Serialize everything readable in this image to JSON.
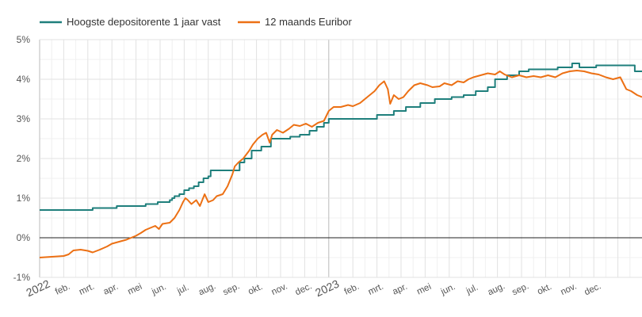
{
  "chart_data": {
    "type": "line",
    "title": "",
    "xlabel": "",
    "ylabel": "",
    "ylim": [
      -1,
      5
    ],
    "y_ticks": [
      "5%",
      "4%",
      "3%",
      "2%",
      "1%",
      "0%",
      "-1%"
    ],
    "x_ticks": [
      "2022",
      "feb.",
      "mrt.",
      "apr.",
      "mei",
      "jun.",
      "jul.",
      "aug.",
      "sep.",
      "okt.",
      "nov.",
      "dec.",
      "2023",
      "feb.",
      "mrt.",
      "apr.",
      "mei",
      "jun.",
      "jul.",
      "aug.",
      "sep.",
      "okt.",
      "nov.",
      "dec."
    ],
    "grid": true,
    "legend_position": "top-left",
    "x_unit": "months since January 2022",
    "series": [
      {
        "name": "Hoogste depositorente 1 jaar vast",
        "color": "#1f7f7c",
        "step": true,
        "points": [
          [
            0.0,
            0.7
          ],
          [
            2.1,
            0.7
          ],
          [
            2.2,
            0.75
          ],
          [
            3.1,
            0.75
          ],
          [
            3.2,
            0.8
          ],
          [
            4.3,
            0.8
          ],
          [
            4.4,
            0.85
          ],
          [
            4.8,
            0.85
          ],
          [
            4.9,
            0.9
          ],
          [
            5.3,
            0.9
          ],
          [
            5.4,
            0.95
          ],
          [
            5.5,
            1.0
          ],
          [
            5.6,
            1.05
          ],
          [
            5.8,
            1.1
          ],
          [
            6.0,
            1.2
          ],
          [
            6.2,
            1.25
          ],
          [
            6.4,
            1.3
          ],
          [
            6.6,
            1.4
          ],
          [
            6.8,
            1.5
          ],
          [
            7.0,
            1.55
          ],
          [
            7.1,
            1.7
          ],
          [
            8.2,
            1.7
          ],
          [
            8.3,
            1.9
          ],
          [
            8.5,
            2.0
          ],
          [
            8.8,
            2.2
          ],
          [
            9.1,
            2.2
          ],
          [
            9.2,
            2.3
          ],
          [
            9.6,
            2.5
          ],
          [
            10.3,
            2.5
          ],
          [
            10.4,
            2.55
          ],
          [
            10.8,
            2.6
          ],
          [
            11.1,
            2.6
          ],
          [
            11.2,
            2.7
          ],
          [
            11.5,
            2.8
          ],
          [
            11.7,
            2.8
          ],
          [
            11.8,
            2.9
          ],
          [
            12.0,
            3.0
          ],
          [
            13.9,
            3.0
          ],
          [
            14.0,
            3.1
          ],
          [
            14.6,
            3.1
          ],
          [
            14.7,
            3.2
          ],
          [
            15.1,
            3.2
          ],
          [
            15.2,
            3.3
          ],
          [
            15.7,
            3.3
          ],
          [
            15.8,
            3.4
          ],
          [
            16.3,
            3.4
          ],
          [
            16.4,
            3.5
          ],
          [
            17.0,
            3.5
          ],
          [
            17.1,
            3.55
          ],
          [
            17.5,
            3.55
          ],
          [
            17.6,
            3.6
          ],
          [
            18.0,
            3.6
          ],
          [
            18.1,
            3.7
          ],
          [
            18.5,
            3.7
          ],
          [
            18.6,
            3.8
          ],
          [
            18.8,
            3.8
          ],
          [
            18.9,
            4.0
          ],
          [
            19.3,
            4.0
          ],
          [
            19.4,
            4.1
          ],
          [
            19.8,
            4.1
          ],
          [
            19.9,
            4.2
          ],
          [
            20.2,
            4.2
          ],
          [
            20.3,
            4.25
          ],
          [
            21.4,
            4.25
          ],
          [
            21.5,
            4.3
          ],
          [
            22.0,
            4.3
          ],
          [
            22.1,
            4.4
          ],
          [
            22.3,
            4.4
          ],
          [
            22.4,
            4.3
          ],
          [
            23.0,
            4.3
          ],
          [
            23.1,
            4.35
          ],
          [
            24.6,
            4.35
          ],
          [
            24.7,
            4.2
          ],
          [
            25.0,
            4.2
          ]
        ]
      },
      {
        "name": "12 maands Euribor",
        "color": "#ec7014",
        "step": false,
        "points": [
          [
            0.0,
            -0.5
          ],
          [
            0.5,
            -0.48
          ],
          [
            1.0,
            -0.46
          ],
          [
            1.2,
            -0.42
          ],
          [
            1.4,
            -0.32
          ],
          [
            1.7,
            -0.3
          ],
          [
            2.0,
            -0.33
          ],
          [
            2.2,
            -0.37
          ],
          [
            2.5,
            -0.3
          ],
          [
            2.8,
            -0.22
          ],
          [
            3.0,
            -0.15
          ],
          [
            3.3,
            -0.1
          ],
          [
            3.6,
            -0.05
          ],
          [
            3.8,
            0.0
          ],
          [
            4.0,
            0.05
          ],
          [
            4.2,
            0.12
          ],
          [
            4.4,
            0.2
          ],
          [
            4.6,
            0.25
          ],
          [
            4.8,
            0.3
          ],
          [
            4.95,
            0.22
          ],
          [
            5.1,
            0.35
          ],
          [
            5.4,
            0.38
          ],
          [
            5.6,
            0.5
          ],
          [
            5.8,
            0.7
          ],
          [
            5.95,
            0.9
          ],
          [
            6.05,
            1.0
          ],
          [
            6.15,
            0.95
          ],
          [
            6.3,
            0.85
          ],
          [
            6.5,
            0.95
          ],
          [
            6.65,
            0.8
          ],
          [
            6.85,
            1.1
          ],
          [
            7.0,
            0.9
          ],
          [
            7.2,
            0.95
          ],
          [
            7.35,
            1.05
          ],
          [
            7.6,
            1.1
          ],
          [
            7.8,
            1.3
          ],
          [
            8.0,
            1.6
          ],
          [
            8.1,
            1.8
          ],
          [
            8.25,
            1.9
          ],
          [
            8.45,
            2.0
          ],
          [
            8.7,
            2.2
          ],
          [
            8.85,
            2.35
          ],
          [
            9.05,
            2.5
          ],
          [
            9.25,
            2.6
          ],
          [
            9.4,
            2.65
          ],
          [
            9.55,
            2.4
          ],
          [
            9.65,
            2.6
          ],
          [
            9.85,
            2.72
          ],
          [
            10.1,
            2.65
          ],
          [
            10.35,
            2.75
          ],
          [
            10.55,
            2.85
          ],
          [
            10.8,
            2.82
          ],
          [
            11.05,
            2.88
          ],
          [
            11.3,
            2.8
          ],
          [
            11.55,
            2.9
          ],
          [
            11.8,
            2.95
          ],
          [
            12.0,
            3.2
          ],
          [
            12.2,
            3.3
          ],
          [
            12.5,
            3.3
          ],
          [
            12.8,
            3.35
          ],
          [
            13.0,
            3.32
          ],
          [
            13.3,
            3.4
          ],
          [
            13.6,
            3.55
          ],
          [
            13.9,
            3.7
          ],
          [
            14.1,
            3.85
          ],
          [
            14.3,
            3.95
          ],
          [
            14.45,
            3.75
          ],
          [
            14.55,
            3.38
          ],
          [
            14.7,
            3.6
          ],
          [
            14.9,
            3.5
          ],
          [
            15.1,
            3.55
          ],
          [
            15.3,
            3.7
          ],
          [
            15.55,
            3.85
          ],
          [
            15.8,
            3.9
          ],
          [
            16.1,
            3.85
          ],
          [
            16.3,
            3.8
          ],
          [
            16.6,
            3.82
          ],
          [
            16.8,
            3.9
          ],
          [
            17.1,
            3.85
          ],
          [
            17.35,
            3.95
          ],
          [
            17.6,
            3.92
          ],
          [
            17.8,
            4.0
          ],
          [
            18.0,
            4.05
          ],
          [
            18.3,
            4.1
          ],
          [
            18.6,
            4.15
          ],
          [
            18.9,
            4.12
          ],
          [
            19.1,
            4.2
          ],
          [
            19.3,
            4.12
          ],
          [
            19.6,
            4.05
          ],
          [
            19.9,
            4.1
          ],
          [
            20.2,
            4.05
          ],
          [
            20.5,
            4.08
          ],
          [
            20.8,
            4.05
          ],
          [
            21.1,
            4.1
          ],
          [
            21.4,
            4.05
          ],
          [
            21.7,
            4.15
          ],
          [
            22.0,
            4.2
          ],
          [
            22.3,
            4.22
          ],
          [
            22.6,
            4.2
          ],
          [
            22.9,
            4.15
          ],
          [
            23.2,
            4.12
          ],
          [
            23.5,
            4.05
          ],
          [
            23.8,
            4.0
          ],
          [
            24.1,
            4.05
          ],
          [
            24.35,
            3.75
          ],
          [
            24.55,
            3.7
          ],
          [
            24.8,
            3.6
          ],
          [
            25.0,
            3.55
          ]
        ]
      }
    ]
  }
}
